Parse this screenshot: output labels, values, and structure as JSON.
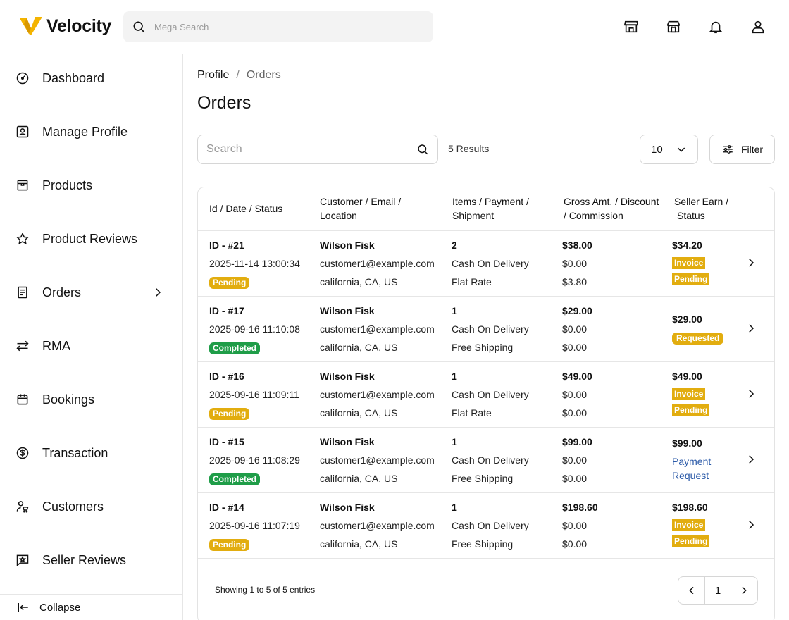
{
  "brand": {
    "name": "Velocity",
    "accent": "#f4b400",
    "accent_dark": "#d99800"
  },
  "search": {
    "placeholder": "Mega Search"
  },
  "header_icons": [
    "store-icon",
    "shop-icon",
    "bell-icon",
    "user-icon"
  ],
  "sidebar": {
    "items": [
      {
        "label": "Dashboard",
        "icon": "gauge-icon"
      },
      {
        "label": "Manage Profile",
        "icon": "profile-card-icon"
      },
      {
        "label": "Products",
        "icon": "box-icon"
      },
      {
        "label": "Product Reviews",
        "icon": "star-icon"
      },
      {
        "label": "Orders",
        "icon": "document-icon",
        "has_submenu": true
      },
      {
        "label": "RMA",
        "icon": "swap-icon"
      },
      {
        "label": "Bookings",
        "icon": "calendar-icon"
      },
      {
        "label": "Transaction",
        "icon": "dollar-circle-icon"
      },
      {
        "label": "Customers",
        "icon": "customer-cart-icon"
      },
      {
        "label": "Seller Reviews",
        "icon": "review-bubble-icon"
      }
    ],
    "collapse_label": "Collapse"
  },
  "breadcrumb": {
    "root": "Profile",
    "separator": "/",
    "current": "Orders"
  },
  "page_title": "Orders",
  "toolbar": {
    "search_placeholder": "Search",
    "results": "5 Results",
    "per_page": "10",
    "filter_label": "Filter"
  },
  "table": {
    "headers": [
      [
        "Id / Date / Status",
        ""
      ],
      [
        "Customer / Email /",
        "Location"
      ],
      [
        "Items / Payment /",
        "Shipment"
      ],
      [
        "Gross Amt. / Discount",
        "/ Commission"
      ],
      [
        "Seller Earn /",
        "Status"
      ]
    ],
    "rows": [
      {
        "id": "ID - #21",
        "date": "2025-11-14 13:00:34",
        "status": "Pending",
        "customer": "Wilson Fisk",
        "email": "customer1@example.com",
        "location": "california, CA, US",
        "items": "2",
        "payment": "Cash On Delivery",
        "shipment": "Flat Rate",
        "gross": "$38.00",
        "discount": "$0.00",
        "commission": "$3.80",
        "seller_earn": "$34.20",
        "seller_status": [
          "Invoice",
          "Pending"
        ],
        "seller_status_type": "stack"
      },
      {
        "id": "ID - #17",
        "date": "2025-09-16 11:10:08",
        "status": "Completed",
        "customer": "Wilson Fisk",
        "email": "customer1@example.com",
        "location": "california, CA, US",
        "items": "1",
        "payment": "Cash On Delivery",
        "shipment": "Free Shipping",
        "gross": "$29.00",
        "discount": "$0.00",
        "commission": "$0.00",
        "seller_earn": "$29.00",
        "seller_status": [
          "Requested"
        ],
        "seller_status_type": "badge"
      },
      {
        "id": "ID - #16",
        "date": "2025-09-16 11:09:11",
        "status": "Pending",
        "customer": "Wilson Fisk",
        "email": "customer1@example.com",
        "location": "california, CA, US",
        "items": "1",
        "payment": "Cash On Delivery",
        "shipment": "Flat Rate",
        "gross": "$49.00",
        "discount": "$0.00",
        "commission": "$0.00",
        "seller_earn": "$49.00",
        "seller_status": [
          "Invoice",
          "Pending"
        ],
        "seller_status_type": "stack"
      },
      {
        "id": "ID - #15",
        "date": "2025-09-16 11:08:29",
        "status": "Completed",
        "customer": "Wilson Fisk",
        "email": "customer1@example.com",
        "location": "california, CA, US",
        "items": "1",
        "payment": "Cash On Delivery",
        "shipment": "Free Shipping",
        "gross": "$99.00",
        "discount": "$0.00",
        "commission": "$0.00",
        "seller_earn": "$99.00",
        "seller_status": [
          "Payment",
          "Request"
        ],
        "seller_status_type": "link"
      },
      {
        "id": "ID - #14",
        "date": "2025-09-16 11:07:19",
        "status": "Pending",
        "customer": "Wilson Fisk",
        "email": "customer1@example.com",
        "location": "california, CA, US",
        "items": "1",
        "payment": "Cash On Delivery",
        "shipment": "Free Shipping",
        "gross": "$198.60",
        "discount": "$0.00",
        "commission": "$0.00",
        "seller_earn": "$198.60",
        "seller_status": [
          "Invoice",
          "Pending"
        ],
        "seller_status_type": "stack"
      }
    ]
  },
  "footer": {
    "showing": "Showing 1 to 5 of 5 entries",
    "current_page": "1"
  },
  "colors": {
    "pending": "#e2ad0f",
    "completed": "#1f9d48",
    "link": "#2b5aa8"
  }
}
